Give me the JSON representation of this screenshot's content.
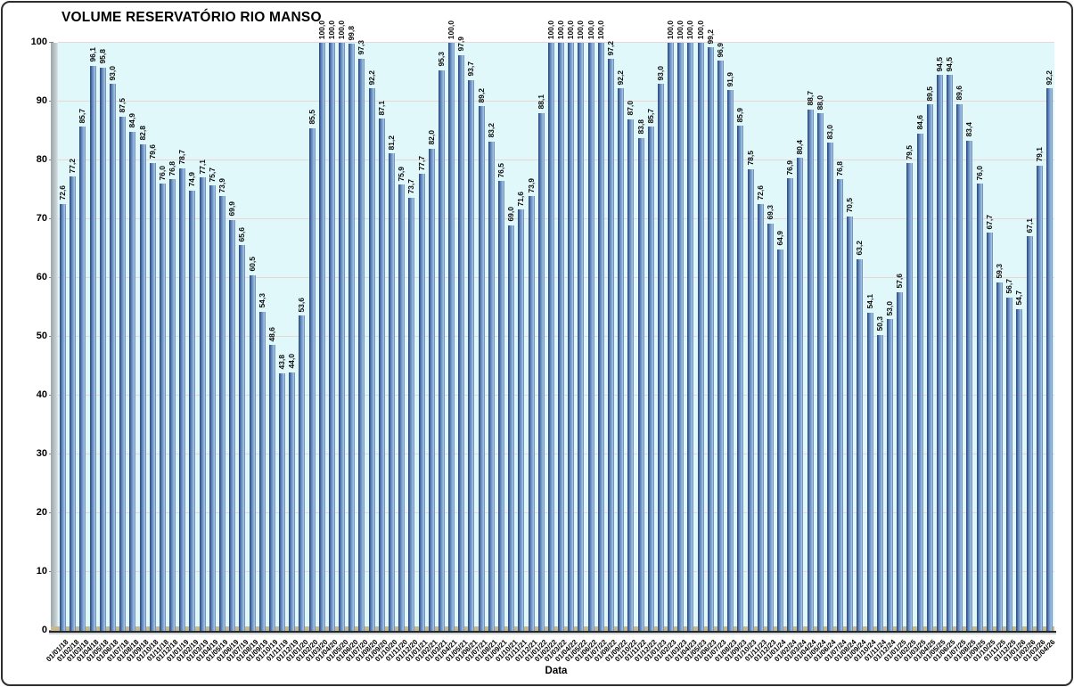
{
  "chart_data": {
    "type": "bar",
    "title": "VOLUME RESERVATÓRIO RIO MANSO",
    "xlabel": "Data",
    "ylabel": "",
    "ylim": [
      0,
      100
    ],
    "ytick_step": 10,
    "grid": true,
    "legend": false,
    "value_labels_rotated": true,
    "decimal_separator": ",",
    "categories": [
      "01/01/18",
      "01/02/18",
      "01/03/18",
      "01/04/18",
      "01/05/18",
      "01/06/18",
      "01/07/18",
      "01/08/18",
      "01/09/18",
      "01/10/18",
      "01/11/18",
      "01/12/18",
      "01/01/19",
      "01/02/19",
      "01/03/19",
      "01/04/19",
      "01/05/19",
      "01/06/19",
      "01/07/19",
      "01/08/19",
      "01/09/19",
      "01/10/19",
      "01/11/19",
      "01/12/19",
      "01/01/20",
      "01/02/20",
      "01/03/20",
      "01/04/20",
      "01/05/20",
      "01/06/20",
      "01/07/20",
      "01/08/20",
      "01/09/20",
      "01/10/20",
      "01/11/20",
      "01/12/20",
      "01/01/21",
      "01/02/21",
      "01/03/21",
      "01/04/21",
      "01/05/21",
      "01/06/21",
      "01/07/21",
      "01/08/21",
      "01/09/21",
      "01/10/21",
      "01/11/21",
      "01/12/21",
      "01/01/22",
      "01/02/22",
      "01/03/22",
      "01/04/22",
      "01/05/22",
      "01/06/22",
      "01/07/22",
      "01/08/22",
      "01/09/22",
      "01/10/22",
      "01/11/22",
      "01/12/22",
      "01/01/23",
      "01/02/23",
      "01/03/23",
      "01/04/23",
      "01/05/23",
      "01/06/23",
      "01/07/23",
      "01/08/23",
      "01/09/23",
      "01/10/23",
      "01/11/23",
      "01/12/23",
      "01/01/24",
      "01/02/24",
      "01/03/24",
      "01/04/24",
      "01/05/24",
      "01/06/24",
      "01/07/24",
      "01/08/24",
      "01/09/24",
      "01/10/24",
      "01/11/24",
      "01/12/24",
      "01/01/25",
      "01/02/25",
      "01/03/25",
      "01/04/25",
      "01/05/25",
      "01/06/25",
      "01/07/25",
      "01/08/25",
      "01/09/25",
      "01/10/25",
      "01/11/25",
      "01/12/25",
      "01/01/26",
      "01/02/26",
      "01/03/26",
      "01/04/26"
    ],
    "values": [
      72.6,
      77.2,
      85.7,
      96.1,
      95.8,
      93.0,
      87.5,
      84.9,
      82.8,
      79.6,
      76.0,
      76.8,
      78.7,
      74.9,
      77.1,
      75.7,
      73.9,
      69.9,
      65.6,
      60.5,
      54.3,
      48.6,
      43.8,
      44.0,
      53.6,
      85.5,
      100.0,
      100.0,
      100.0,
      99.8,
      97.3,
      92.2,
      87.1,
      81.2,
      75.9,
      73.7,
      77.7,
      82.0,
      95.3,
      100.0,
      97.9,
      93.7,
      89.2,
      83.2,
      76.5,
      69.0,
      71.6,
      73.9,
      88.1,
      100.0,
      100.0,
      100.0,
      100.0,
      100.0,
      100.0,
      97.2,
      92.2,
      87.0,
      83.8,
      85.7,
      93.0,
      100.0,
      100.0,
      100.0,
      100.0,
      99.2,
      96.9,
      91.9,
      85.9,
      78.5,
      72.6,
      69.3,
      64.9,
      76.9,
      80.4,
      88.7,
      88.0,
      83.0,
      76.8,
      70.5,
      63.2,
      54.1,
      50.3,
      53.0,
      57.6,
      79.5,
      84.6,
      89.5,
      94.5,
      94.5,
      89.6,
      83.4,
      76.0,
      67.7,
      59.3,
      56.7,
      54.7,
      67.1,
      79.1,
      92.2
    ],
    "colors": {
      "bar_fill": "#5e86bb",
      "bar_edge_dark": "#35538a",
      "bar_highlight": "#a9c5e2",
      "plot_background": "#e1f8fb",
      "gridline": "#e7d6d4",
      "wall_gray": "#9aa5a8",
      "wall_gray_light": "#ccd5d7",
      "floor_tan": "#c6ba8d",
      "axis_line": "#262626",
      "text": "#000000",
      "frame_border": "#2e2e2e",
      "page_background": "#ffffff"
    }
  }
}
